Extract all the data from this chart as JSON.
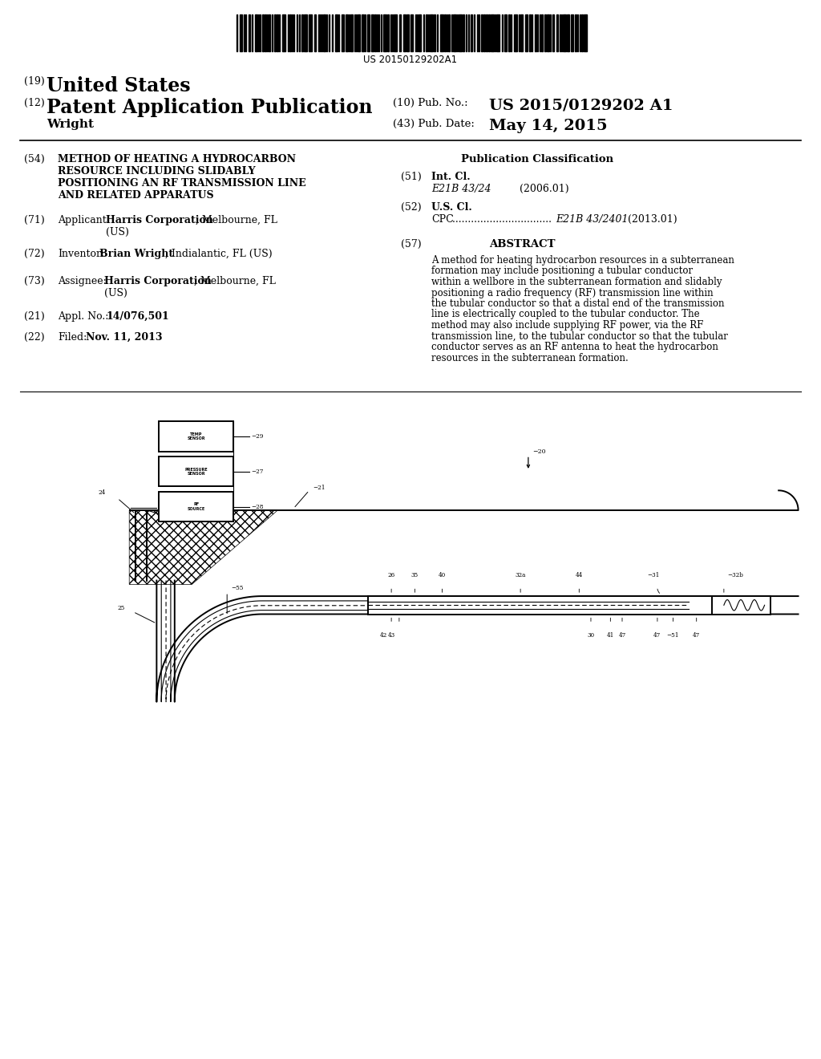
{
  "bg_color": "#ffffff",
  "barcode_text": "US 20150129202A1",
  "header_country_num": "(19)",
  "header_country": "United States",
  "header_type_num": "(12)",
  "header_type": "Patent Application Publication",
  "header_inventor": "Wright",
  "header_pubno_label": "(10) Pub. No.:",
  "header_pubno": "US 2015/0129202 A1",
  "header_pubdate_label": "(43) Pub. Date:",
  "header_pubdate": "May 14, 2015",
  "f54_num": "(54)",
  "f54_text": "METHOD OF HEATING A HYDROCARBON\nRESOURCE INCLUDING SLIDABLY\nPOSITIONING AN RF TRANSMISSION LINE\nAND RELATED APPARATUS",
  "f71_num": "(71)",
  "f71_label": "Applicant:",
  "f71_bold": "Harris Corporation",
  "f71_rest": ", Melbourne, FL",
  "f71_rest2": "(US)",
  "f72_num": "(72)",
  "f72_label": "Inventor:",
  "f72_bold": "Brian Wright",
  "f72_rest": ", Indialantic, FL (US)",
  "f73_num": "(73)",
  "f73_label": "Assignee:",
  "f73_bold": "Harris Corporation",
  "f73_rest": ", Melbourne, FL",
  "f73_rest2": "(US)",
  "f21_num": "(21)",
  "f21_label": "Appl. No.:",
  "f21_val": "14/076,501",
  "f22_num": "(22)",
  "f22_label": "Filed:",
  "f22_val": "Nov. 11, 2013",
  "pub_class": "Publication Classification",
  "f51_num": "(51)",
  "f51_label": "Int. Cl.",
  "f51_code": "E21B 43/24",
  "f51_year": "(2006.01)",
  "f52_num": "(52)",
  "f52_label": "U.S. Cl.",
  "f52_cpc": "CPC",
  "f52_dots": " ................................",
  "f52_code": "E21B 43/2401",
  "f52_year": "(2013.01)",
  "f57_num": "(57)",
  "f57_title": "ABSTRACT",
  "f57_text": "A method for heating hydrocarbon resources in a subterranean formation may include positioning a tubular conductor within a wellbore in the subterranean formation and slidably positioning a radio frequency (RF) transmission line within the tubular conductor so that a distal end of the transmission line is electrically coupled to the tubular conductor. The method may also include supplying RF power, via the RF transmission line, to the tubular conductor so that the tubular conductor serves as an RF antenna to heat the hydrocarbon resources in the subterranean formation.",
  "lw_main": 1.4,
  "lw_thin": 0.8,
  "lw_med": 1.0
}
